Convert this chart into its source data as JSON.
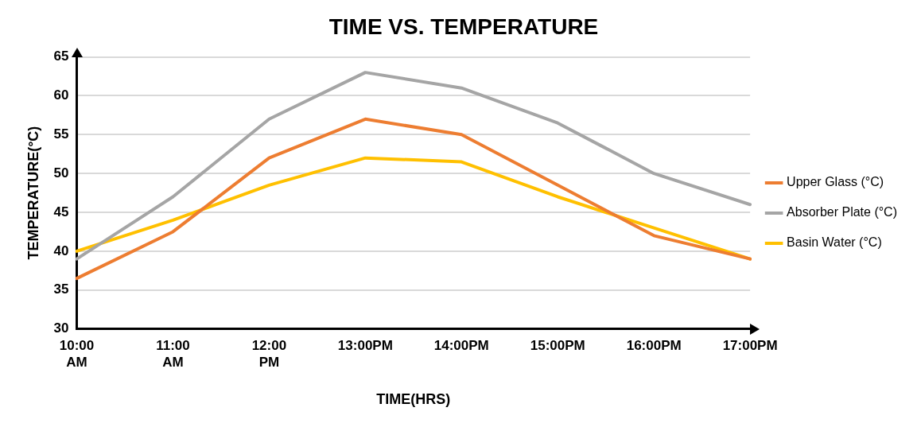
{
  "chart_data": {
    "type": "line",
    "title": "TIME VS. TEMPERATURE",
    "xlabel": "TIME(HRS)",
    "ylabel": "TEMPERATURE(°C)",
    "categories": [
      "10:00 AM",
      "11:00 AM",
      "12:00 PM",
      "13:00PM",
      "14:00PM",
      "15:00PM",
      "16:00PM",
      "17:00PM"
    ],
    "series": [
      {
        "name": "Upper Glass (°C)",
        "color": "#ed7d31",
        "values": [
          36.5,
          42.5,
          52,
          57,
          55,
          48.5,
          42,
          39
        ]
      },
      {
        "name": "Absorber Plate (°C)",
        "color": "#a5a5a5",
        "values": [
          39,
          47,
          57,
          63,
          61,
          56.5,
          50,
          46
        ]
      },
      {
        "name": "Basin Water (°C)",
        "color": "#ffc000",
        "values": [
          40,
          44,
          48.5,
          52,
          51.5,
          47,
          43,
          39
        ]
      }
    ],
    "ylim": [
      30,
      65
    ],
    "yticks": [
      30,
      35,
      40,
      45,
      50,
      55,
      60,
      65
    ],
    "grid": "y",
    "legend": "right",
    "marker": "none",
    "line_style": "solid"
  }
}
